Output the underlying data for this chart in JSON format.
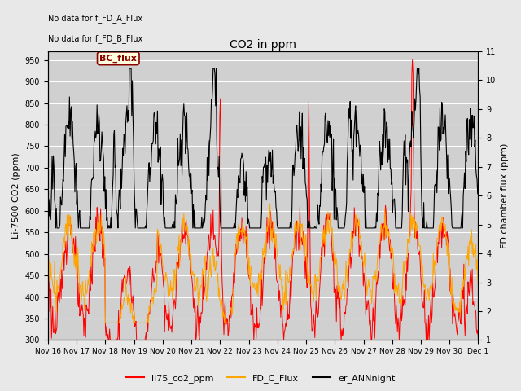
{
  "title": "CO2 in ppm",
  "ylabel_left": "Li-7500 CO2 (ppm)",
  "ylabel_right": "FD chamber flux (ppm)",
  "ylim_left": [
    300,
    970
  ],
  "ylim_right": [
    1.0,
    11.0
  ],
  "yticks_left": [
    300,
    350,
    400,
    450,
    500,
    550,
    600,
    650,
    700,
    750,
    800,
    850,
    900,
    950
  ],
  "yticks_right": [
    1.0,
    2.0,
    3.0,
    4.0,
    5.0,
    6.0,
    7.0,
    8.0,
    9.0,
    10.0,
    11.0
  ],
  "xtick_labels": [
    "Nov 16",
    "Nov 17",
    "Nov 18",
    "Nov 19",
    "Nov 20",
    "Nov 21",
    "Nov 22",
    "Nov 23",
    "Nov 24",
    "Nov 25",
    "Nov 26",
    "Nov 27",
    "Nov 28",
    "Nov 29",
    "Nov 30",
    "Dec 1"
  ],
  "annotations_topleft": [
    "No data for f_FD_A_Flux",
    "No data for f_FD_B_Flux"
  ],
  "legend_label_box": "BC_flux",
  "legend_entries": [
    "li75_co2_ppm",
    "FD_C_Flux",
    "er_ANNnight"
  ],
  "legend_colors": [
    "#ff0000",
    "#ffa500",
    "#000000"
  ],
  "line_colors": [
    "#ff0000",
    "#ffa500",
    "#000000"
  ],
  "figsize": [
    6.4,
    4.8
  ],
  "dpi": 100
}
